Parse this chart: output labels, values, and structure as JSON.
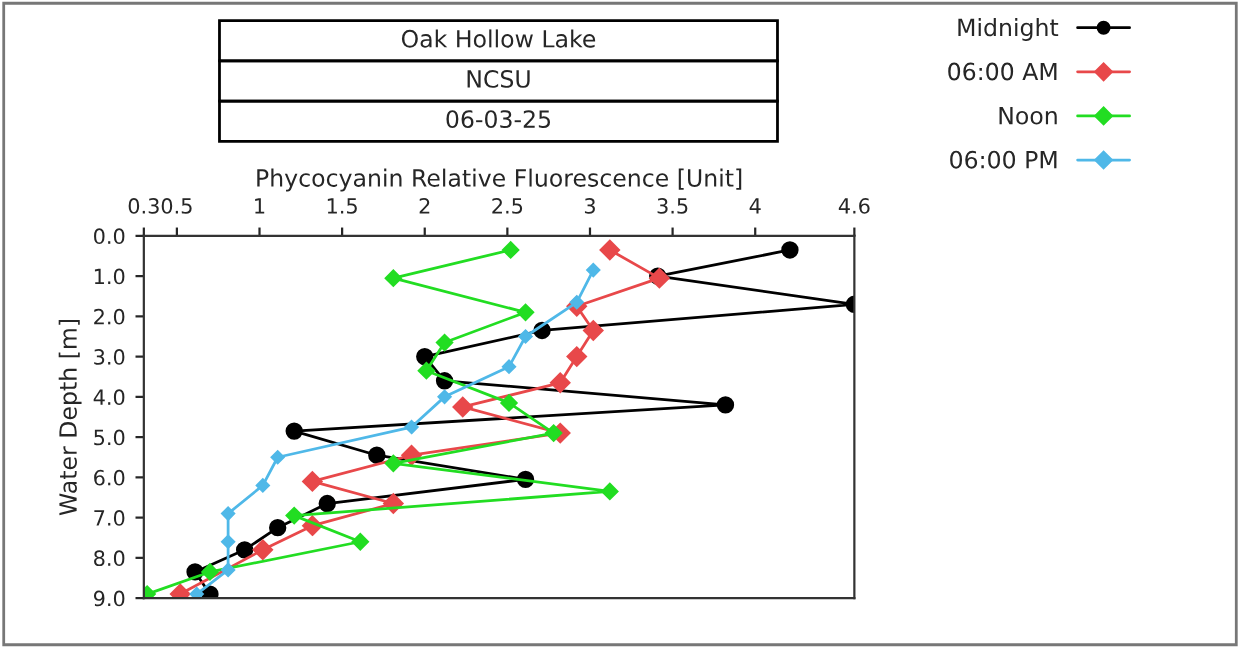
{
  "chart_data": {
    "type": "line",
    "title": "Oak Hollow Lake",
    "subtitle": "NCSU",
    "annotations": [
      "06-03-25"
    ],
    "xlabel": "Phycocyanin Relative Fluorescence [Unit]",
    "ylabel": "Water Depth [m]",
    "xlim": [
      0.3,
      4.6
    ],
    "xticks": [
      0.3,
      0.5,
      1,
      1.5,
      2,
      2.5,
      3,
      3.5,
      4,
      4.6
    ],
    "ylim": [
      9.0,
      0.0
    ],
    "yticks": [
      {
        "value": 0,
        "label": "0.0"
      },
      {
        "value": 1,
        "label": "1.0"
      },
      {
        "value": 2,
        "label": "2.0"
      },
      {
        "value": 3,
        "label": "3.0"
      },
      {
        "value": 4,
        "label": "4.0"
      },
      {
        "value": 5,
        "label": "5.0"
      },
      {
        "value": 6,
        "label": "6.0"
      },
      {
        "value": 7,
        "label": "7.0"
      },
      {
        "value": 8,
        "label": "8.0"
      },
      {
        "value": 9,
        "label": "9.0"
      }
    ],
    "grid": false,
    "legend": "top right",
    "line_style": "solid",
    "series": [
      {
        "name": "Midnight",
        "color": "#000000",
        "marker": "circle",
        "x": [
          4.21,
          3.41,
          4.6,
          2.71,
          2.0,
          2.12,
          3.82,
          1.21,
          1.71,
          2.61,
          1.41,
          1.11,
          0.91,
          0.61,
          0.7
        ],
        "values": [
          0.35,
          1.0,
          1.7,
          2.35,
          3.0,
          3.6,
          4.2,
          4.85,
          5.45,
          6.05,
          6.65,
          7.25,
          7.8,
          8.35,
          8.9
        ]
      },
      {
        "name": "06:00 AM",
        "color": "#e8484a",
        "marker": "diamond",
        "x": [
          3.12,
          3.42,
          2.92,
          3.02,
          2.92,
          2.82,
          2.23,
          2.82,
          1.92,
          1.32,
          1.81,
          1.32,
          1.02,
          0.52
        ],
        "values": [
          0.35,
          1.05,
          1.75,
          2.35,
          3.0,
          3.65,
          4.25,
          4.9,
          5.45,
          6.1,
          6.65,
          7.2,
          7.8,
          8.9
        ]
      },
      {
        "name": "Noon",
        "color": "#22dd22",
        "marker": "diamond",
        "x": [
          2.52,
          1.81,
          2.61,
          2.12,
          2.01,
          2.51,
          2.78,
          1.81,
          3.12,
          1.21,
          1.61,
          0.7,
          0.32
        ],
        "values": [
          0.35,
          1.05,
          1.9,
          2.65,
          3.35,
          4.15,
          4.9,
          5.65,
          6.35,
          6.95,
          7.6,
          8.35,
          8.9
        ]
      },
      {
        "name": "06:00 PM",
        "color": "#4fb8e8",
        "marker": "diamond",
        "x": [
          3.02,
          2.92,
          2.61,
          2.51,
          2.12,
          1.92,
          1.11,
          1.02,
          0.81,
          0.81,
          0.81,
          0.62
        ],
        "values": [
          0.85,
          1.65,
          2.5,
          3.25,
          4.0,
          4.75,
          5.5,
          6.2,
          6.9,
          7.6,
          8.3,
          8.9
        ]
      }
    ]
  }
}
